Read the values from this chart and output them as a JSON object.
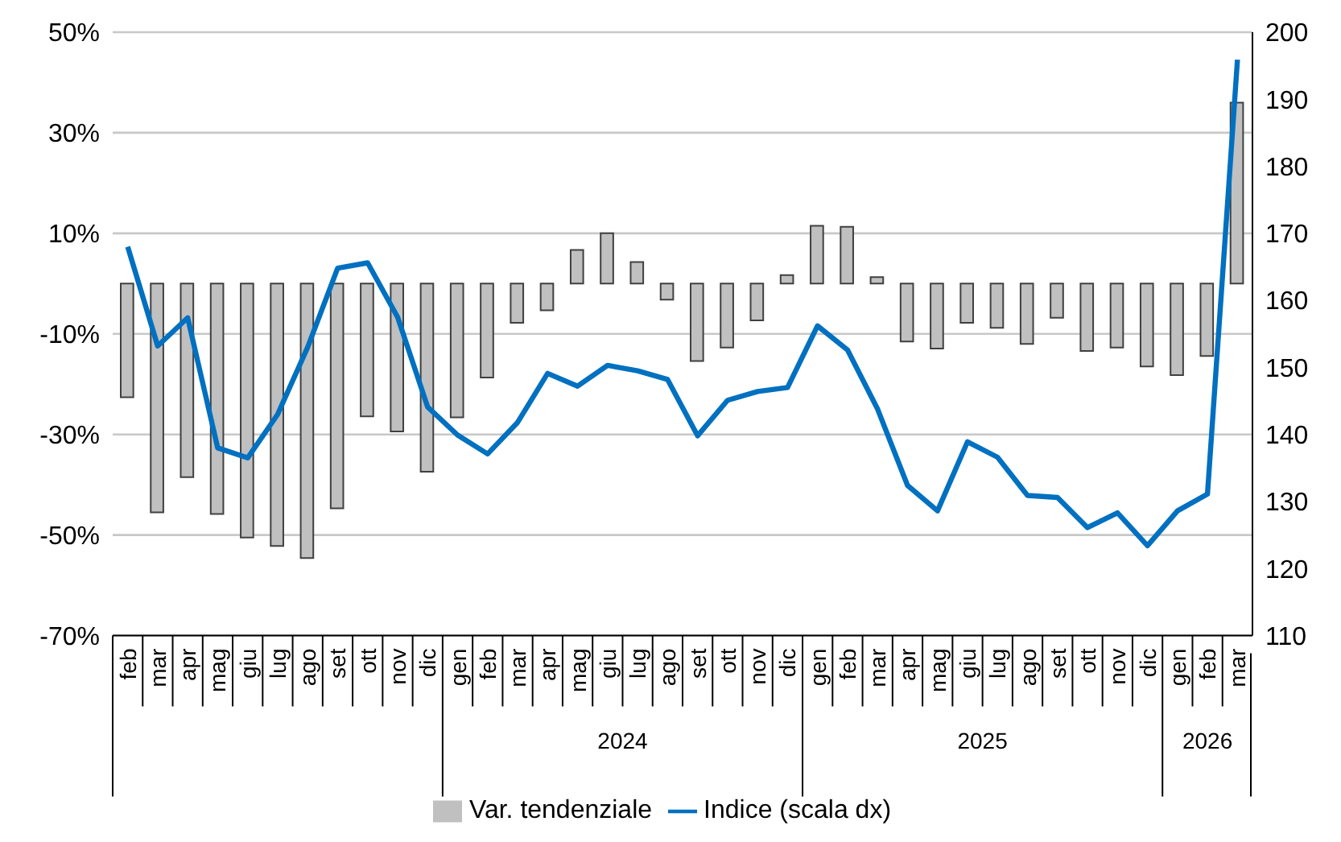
{
  "chart_data": {
    "type": "bar",
    "categories": [
      "feb",
      "mar",
      "apr",
      "mag",
      "giu",
      "lug",
      "ago",
      "set",
      "ott",
      "nov",
      "dic",
      "gen",
      "feb",
      "mar",
      "apr",
      "mag",
      "giu",
      "lug",
      "ago",
      "set",
      "ott",
      "nov",
      "dic",
      "gen",
      "feb",
      "mar",
      "apr",
      "mag",
      "giu",
      "lug",
      "ago",
      "set",
      "ott",
      "nov",
      "dic",
      "gen",
      "feb",
      "mar"
    ],
    "series": [
      {
        "name": "Var. tendenziale",
        "color": "#c0c0c0",
        "values": [
          -22.6,
          -45.5,
          -38.5,
          -45.8,
          -50.5,
          -52.2,
          -54.6,
          -44.7,
          -26.4,
          -29.4,
          -37.4,
          -26.6,
          -18.7,
          -7.8,
          -5.3,
          6.7,
          10,
          4.3,
          -3.2,
          -15.4,
          -12.7,
          -7.3,
          1.7,
          11.5,
          11.3,
          1.3,
          -11.5,
          -12.9,
          -7.8,
          -8.8,
          -12,
          -6.8,
          -13.4,
          -12.7,
          -16.5,
          -18.2,
          -14.4,
          36
        ]
      },
      {
        "name": "Indice (scala dx)",
        "type": "line",
        "axis": "y2",
        "color": "#0070c0",
        "values": [
          168.0,
          153.2,
          157.4,
          138.0,
          136.5,
          143.0,
          153.0,
          164.8,
          165.6,
          157.5,
          144.1,
          139.9,
          137.1,
          141.8,
          149.1,
          147.2,
          150.3,
          149.5,
          148.2,
          139.8,
          145.1,
          146.4,
          147.0,
          156.2,
          152.6,
          143.8,
          132.4,
          128.6,
          138.9,
          136.6,
          130.9,
          130.6,
          126.1,
          128.3,
          123.4,
          128.6,
          131.1,
          195.9
        ]
      }
    ],
    "ylim": [
      -70,
      50
    ],
    "yticks": [
      {
        "value": -70,
        "label": "-70%"
      },
      {
        "value": -50,
        "label": "-50%"
      },
      {
        "value": -30,
        "label": "-30%"
      },
      {
        "value": -10,
        "label": "-10%"
      },
      {
        "value": 10,
        "label": "10%"
      },
      {
        "value": 30,
        "label": "30%"
      },
      {
        "value": 50,
        "label": "50%"
      }
    ],
    "y2lim": [
      110,
      200
    ],
    "y2ticks": [
      110,
      120,
      130,
      140,
      150,
      160,
      170,
      180,
      190,
      200
    ],
    "annotations": [
      "2024",
      "2025",
      "2026"
    ],
    "grid": "y",
    "legend": "bottom"
  }
}
